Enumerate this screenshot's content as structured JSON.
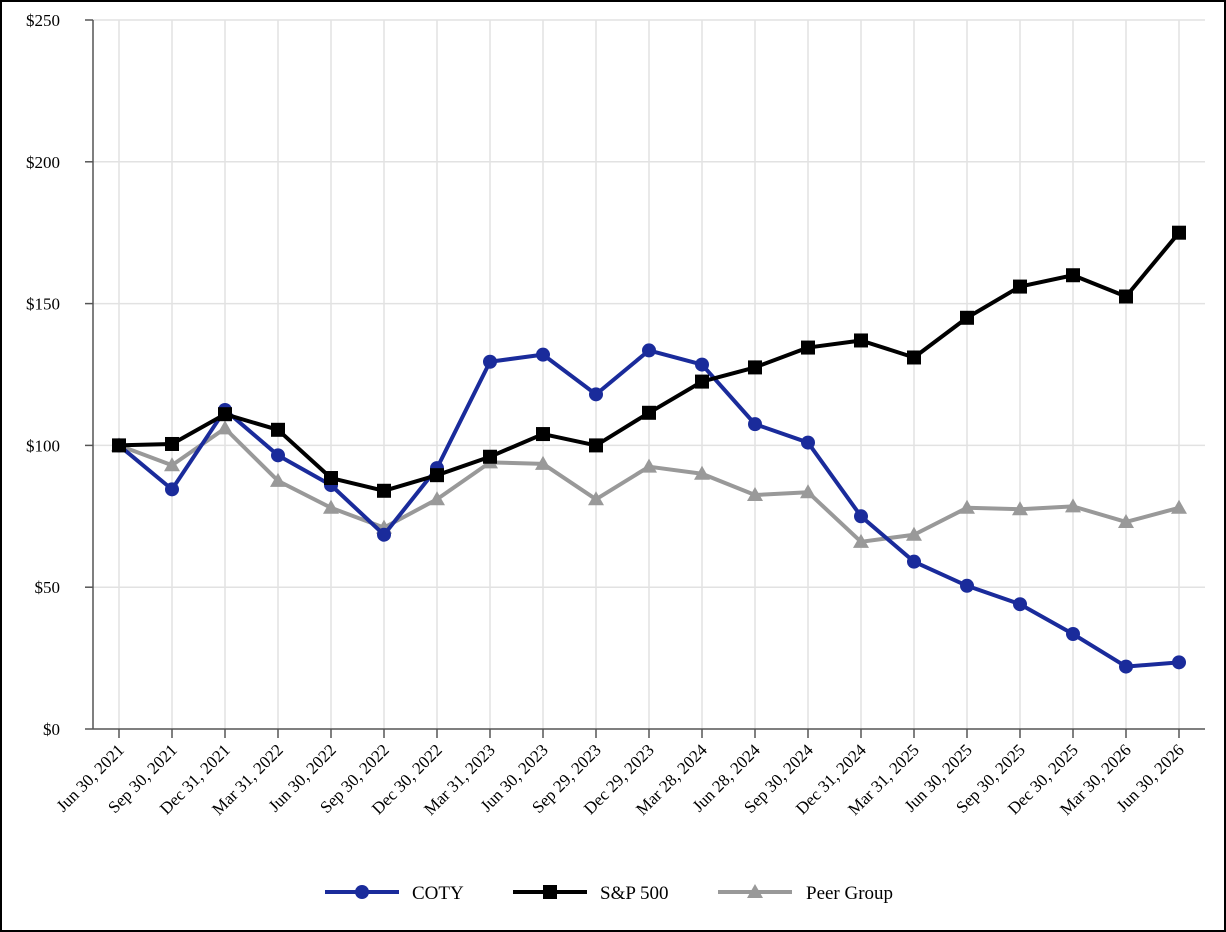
{
  "chart_data": {
    "type": "line",
    "title": "",
    "xlabel": "",
    "ylabel": "",
    "ylim": [
      0,
      250
    ],
    "yticks": [
      0,
      50,
      100,
      150,
      200,
      250
    ],
    "ytick_labels": [
      "$0",
      "$50",
      "$100",
      "$150",
      "$200",
      "$250"
    ],
    "grid": true,
    "legend_position": "bottom-center",
    "categories": [
      "Jun 30, 2021",
      "Sep 30, 2021",
      "Dec 31, 2021",
      "Mar 31, 2022",
      "Jun 30, 2022",
      "Sep 30, 2022",
      "Dec 30, 2022",
      "Mar 31, 2023",
      "Jun 30, 2023",
      "Sep 29, 2023",
      "Dec 29, 2023",
      "Mar 28, 2024",
      "Jun 28, 2024",
      "Sep 30, 2024",
      "Dec 31, 2024",
      "Mar 31, 2025",
      "Jun 30, 2025",
      "Sep 30, 2025",
      "Dec 30, 2025",
      "Mar 30, 2026",
      "Jun 30, 2026"
    ],
    "series": [
      {
        "name": "COTY",
        "color": "#1a2b9b",
        "marker": "circle",
        "values": [
          100,
          84.5,
          112.5,
          96.5,
          86,
          68.5,
          92,
          129.5,
          132,
          118,
          133.5,
          128.5,
          107.5,
          101,
          75,
          59,
          50.5,
          44,
          33.5,
          22,
          23.5
        ]
      },
      {
        "name": "S&P 500",
        "color": "#000000",
        "marker": "square",
        "values": [
          100,
          100.5,
          111,
          105.5,
          88.5,
          84,
          89.5,
          96,
          104,
          100,
          111.5,
          122.5,
          127.5,
          134.5,
          137,
          131,
          145,
          156,
          160,
          152.5,
          175
        ]
      },
      {
        "name": "Peer Group",
        "color": "#999999",
        "marker": "triangle",
        "values": [
          100,
          93,
          106,
          87.5,
          78,
          71,
          81,
          94,
          93.5,
          81,
          92.5,
          90,
          82.5,
          83.5,
          66,
          68.5,
          78,
          77.5,
          78.5,
          73,
          78
        ]
      }
    ]
  }
}
